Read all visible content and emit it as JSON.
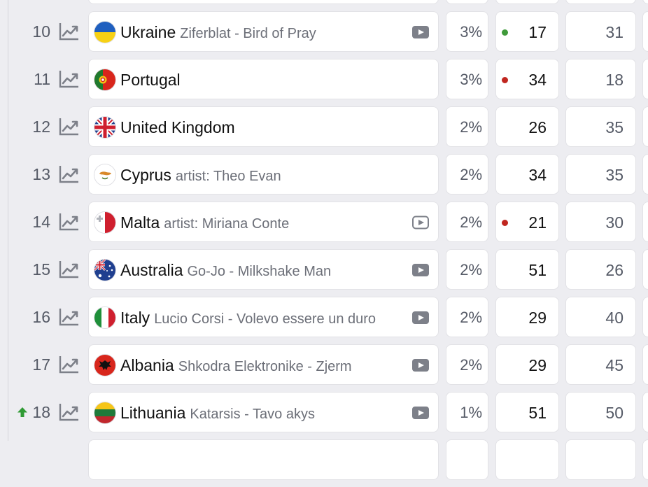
{
  "colors": {
    "dot_green": "#3f9a3a",
    "dot_red": "#c0261f",
    "up_arrow": "#2f9a34",
    "icon_gray": "#7d8089"
  },
  "icons": {
    "trend": "trend-line-chart-icon",
    "video": "video-play-icon",
    "video_outline": "video-play-outline-icon",
    "up": "up-arrow-icon"
  },
  "rows": [
    {
      "rank": "",
      "country": "",
      "song": "",
      "pct": "",
      "place": "",
      "score": ""
    },
    {
      "rank": "10",
      "country": "Ukraine",
      "song": "Ziferblat - Bird of Pray",
      "pct": "3%",
      "place": "17",
      "score": "31",
      "dot": "green",
      "video": "filled"
    },
    {
      "rank": "11",
      "country": "Portugal",
      "song": "",
      "pct": "3%",
      "place": "34",
      "score": "18",
      "dot": "red",
      "video": "none"
    },
    {
      "rank": "12",
      "country": "United Kingdom",
      "song": "",
      "pct": "2%",
      "place": "26",
      "score": "35",
      "dot": "none",
      "video": "none"
    },
    {
      "rank": "13",
      "country": "Cyprus",
      "song": "artist: Theo Evan",
      "pct": "2%",
      "place": "34",
      "score": "35",
      "dot": "none",
      "video": "none"
    },
    {
      "rank": "14",
      "country": "Malta",
      "song": "artist: Miriana Conte",
      "pct": "2%",
      "place": "21",
      "score": "30",
      "dot": "red",
      "video": "outline"
    },
    {
      "rank": "15",
      "country": "Australia",
      "song": "Go-Jo - Milkshake Man",
      "pct": "2%",
      "place": "51",
      "score": "26",
      "dot": "none",
      "video": "filled"
    },
    {
      "rank": "16",
      "country": "Italy",
      "song": "Lucio Corsi - Volevo essere un duro",
      "pct": "2%",
      "place": "29",
      "score": "40",
      "dot": "none",
      "video": "filled"
    },
    {
      "rank": "17",
      "country": "Albania",
      "song": "Shkodra Elektronike - Zjerm",
      "pct": "2%",
      "place": "29",
      "score": "45",
      "dot": "none",
      "video": "filled"
    },
    {
      "rank": "18",
      "country": "Lithuania",
      "song": "Katarsis - Tavo akys",
      "pct": "1%",
      "place": "51",
      "score": "50",
      "dot": "none",
      "video": "filled",
      "rank_change": "up"
    },
    {
      "rank": "",
      "country": "",
      "song": "",
      "pct": "",
      "place": "",
      "score": ""
    }
  ]
}
